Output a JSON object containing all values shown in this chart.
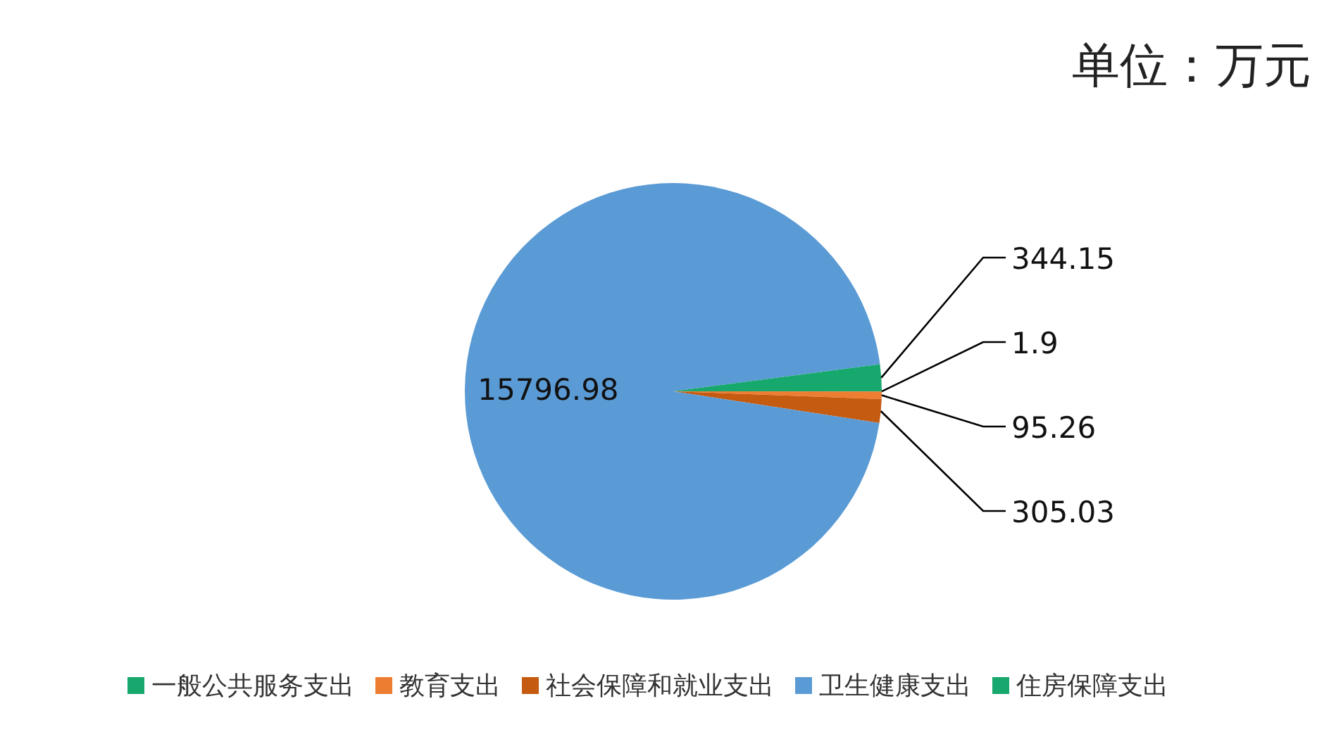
{
  "chart_data": {
    "type": "pie",
    "title": "单位：万元",
    "categories": [
      "一般公共服务支出",
      "教育支出",
      "社会保障和就业支出",
      "卫生健康支出",
      "住房保障支出"
    ],
    "values": [
      1.9,
      95.26,
      305.03,
      15796.98,
      344.15
    ],
    "colors": [
      "#17a86e",
      "#ed7d31",
      "#c55a11",
      "#5b9bd5",
      "#17a86e"
    ],
    "data_labels": true,
    "legend": "bottom"
  }
}
